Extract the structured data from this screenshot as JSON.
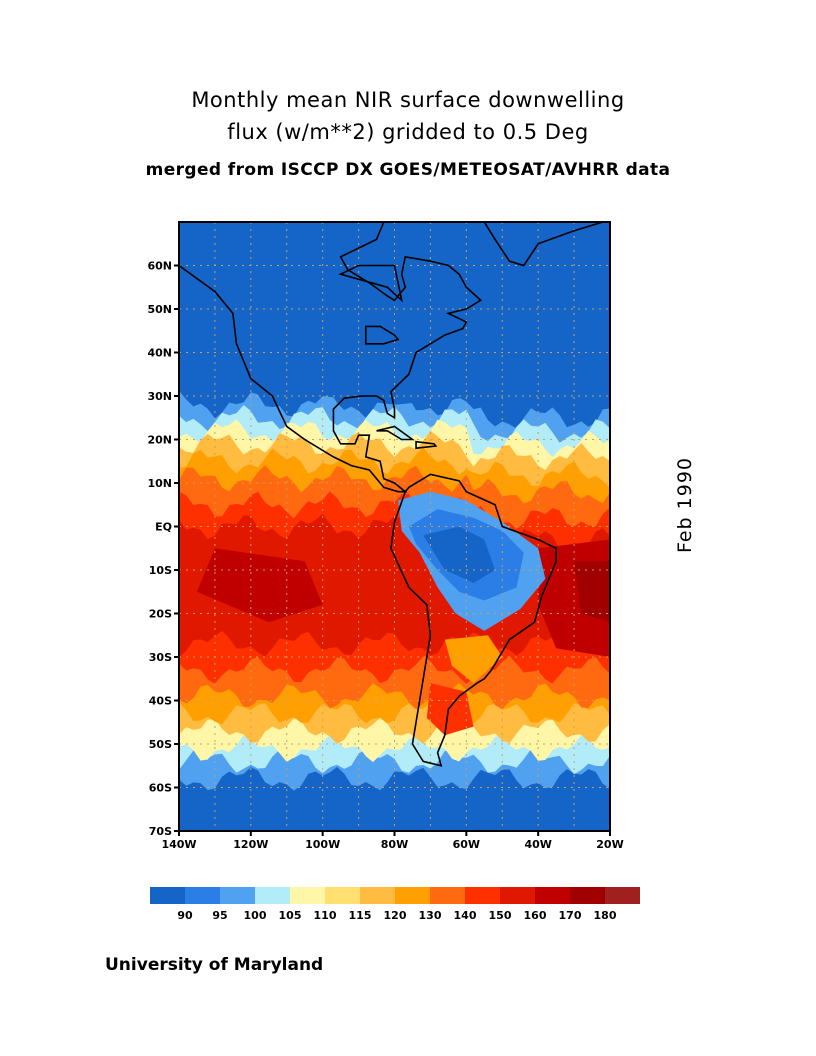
{
  "title": {
    "line1": "Monthly mean NIR surface downwelling",
    "line2": "flux (w/m**2) gridded to 0.5 Deg",
    "line3": "merged from ISCCP DX GOES/METEOSAT/AVHRR data"
  },
  "date_label": "Feb 1990",
  "credit": "University of Maryland",
  "map": {
    "projection": "latlon",
    "lon_range": [
      -140,
      -20
    ],
    "lat_range": [
      -70,
      70
    ],
    "lat_ticks": [
      "60N",
      "50N",
      "40N",
      "30N",
      "20N",
      "10N",
      "EQ",
      "10S",
      "20S",
      "30S",
      "40S",
      "50S",
      "60S",
      "70S"
    ],
    "lon_ticks": [
      "140W",
      "120W",
      "100W",
      "80W",
      "60W",
      "40W",
      "20W"
    ],
    "grid": "dashed"
  },
  "colorbar": {
    "labels": [
      "90",
      "95",
      "100",
      "105",
      "110",
      "115",
      "120",
      "130",
      "140",
      "150",
      "160",
      "170",
      "180"
    ],
    "colors": [
      "#1565c8",
      "#2a7ee6",
      "#50a2f0",
      "#b2ecf8",
      "#fff6a8",
      "#ffe070",
      "#ffbc40",
      "#ffa000",
      "#ff6a10",
      "#ff3000",
      "#e01800",
      "#c00000",
      "#a00000",
      "#a02020"
    ]
  }
}
